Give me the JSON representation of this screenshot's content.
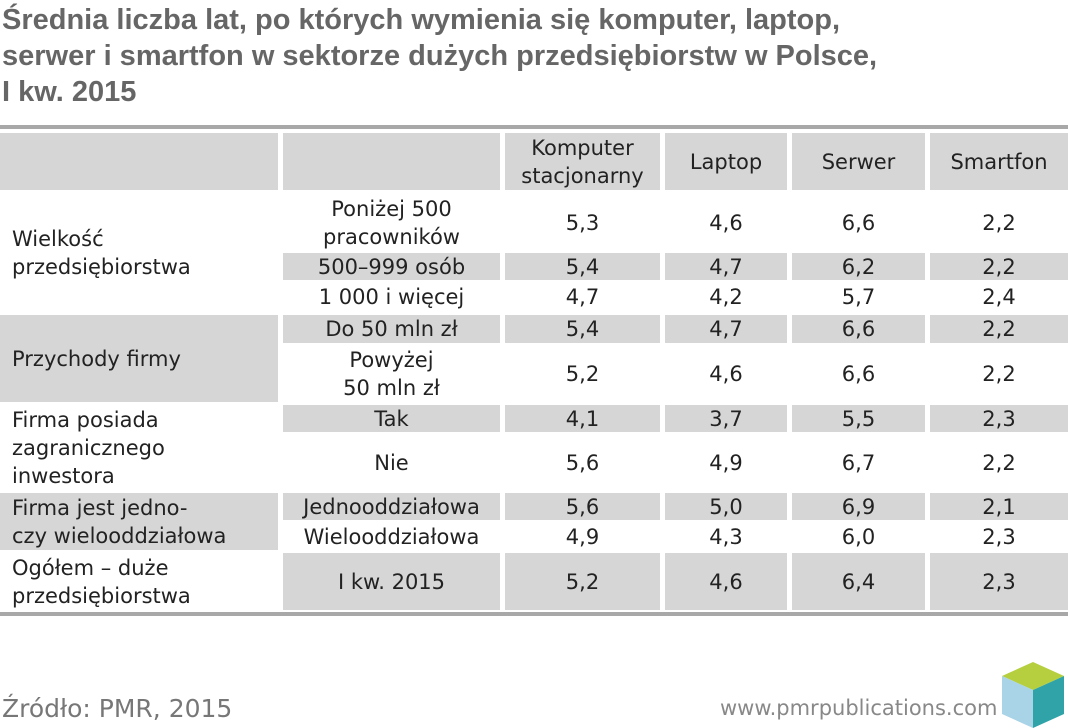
{
  "header": {
    "title": "Średnia liczba lat, po których wymienia się komputer, laptop,\nserwer i smartfon w sektorze dużych przedsiębiorstw w Polsce,\nI kw. 2015"
  },
  "table": {
    "columns": [
      "Komputer\nstacjonarny",
      "Laptop",
      "Serwer",
      "Smartfon"
    ],
    "groups": [
      {
        "label": "Wielkość\nprzedsiębiorstwa",
        "rows": [
          {
            "label": "Poniżej 500\npracowników",
            "values": [
              "5,3",
              "4,6",
              "6,6",
              "2,2"
            ]
          },
          {
            "label": "500–999 osób",
            "values": [
              "5,4",
              "4,7",
              "6,2",
              "2,2"
            ]
          },
          {
            "label": "1 000 i więcej",
            "values": [
              "4,7",
              "4,2",
              "5,7",
              "2,4"
            ]
          }
        ]
      },
      {
        "label": "Przychody firmy",
        "rows": [
          {
            "label": "Do 50 mln zł",
            "values": [
              "5,4",
              "4,7",
              "6,6",
              "2,2"
            ]
          },
          {
            "label": "Powyżej\n50 mln zł",
            "values": [
              "5,2",
              "4,6",
              "6,6",
              "2,2"
            ]
          }
        ]
      },
      {
        "label": "Firma posiada\nzagranicznego\ninwestora",
        "rows": [
          {
            "label": "Tak",
            "values": [
              "4,1",
              "3,7",
              "5,5",
              "2,3"
            ]
          },
          {
            "label": "Nie",
            "values": [
              "5,6",
              "4,9",
              "6,7",
              "2,2"
            ]
          }
        ]
      },
      {
        "label": "Firma jest jedno-\nczy wielooddziałowa",
        "rows": [
          {
            "label": "Jednooddziałowa",
            "values": [
              "5,6",
              "5,0",
              "6,9",
              "2,1"
            ]
          },
          {
            "label": "Wielooddziałowa",
            "values": [
              "4,9",
              "4,3",
              "6,0",
              "2,3"
            ]
          }
        ]
      },
      {
        "label": "Ogółem – duże\nprzedsiębiorstwa",
        "rows": [
          {
            "label": "I kw. 2015",
            "values": [
              "5,2",
              "4,6",
              "6,4",
              "2,3"
            ]
          }
        ]
      }
    ]
  },
  "footer": {
    "source": "Źródło: PMR, 2015",
    "url": "www.pmrpublications.com"
  }
}
